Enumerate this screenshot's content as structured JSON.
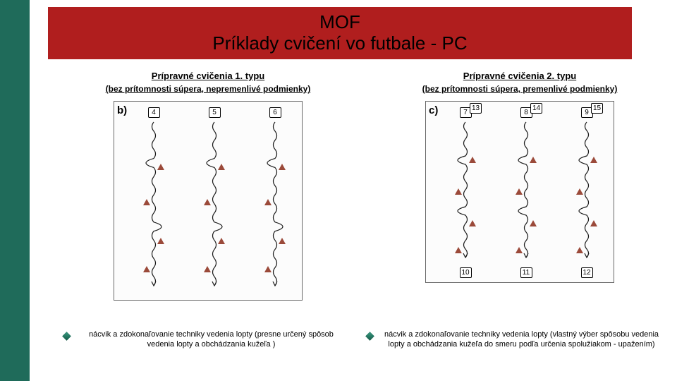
{
  "title": {
    "line1": "MOF",
    "line2": "Príklady cvičení vo futbale - PC"
  },
  "left": {
    "heading": "Prípravné cvičenia 1. typu",
    "subheading": "(bez prítomnosti súpera, nepremenlivé podmienky)",
    "panel_label": "b)",
    "top_numbers": [
      "4",
      "5",
      "6"
    ],
    "caption": "nácvik a zdokonaľovanie techniky vedenia lopty (presne určený spôsob vedenia lopty a obchádzania kužeľa )"
  },
  "right": {
    "heading": "Prípravné cvičenia 2. typu",
    "subheading": "(bez prítomnosti súpera, premenlivé podmienky)",
    "panel_label": "c)",
    "top_numbers": [
      "7",
      "8",
      "9"
    ],
    "ext_numbers": [
      "13",
      "14",
      "15"
    ],
    "bottom_numbers": [
      "10",
      "11",
      "12"
    ],
    "caption": "nácvik a zdokonaľovanie techniky vedenia lopty (vlastný výber spôsobu vedenia lopty a obchádzania kužeľa do smeru podľa určenia spolužiakom - upažením)"
  },
  "style": {
    "cone_fill": "#9b4a3a",
    "wave_stroke": "#1a1a1a",
    "panel_border": "#686868",
    "title_bg": "#b01e1e",
    "sidebar_bg": "#1f6b5a"
  }
}
